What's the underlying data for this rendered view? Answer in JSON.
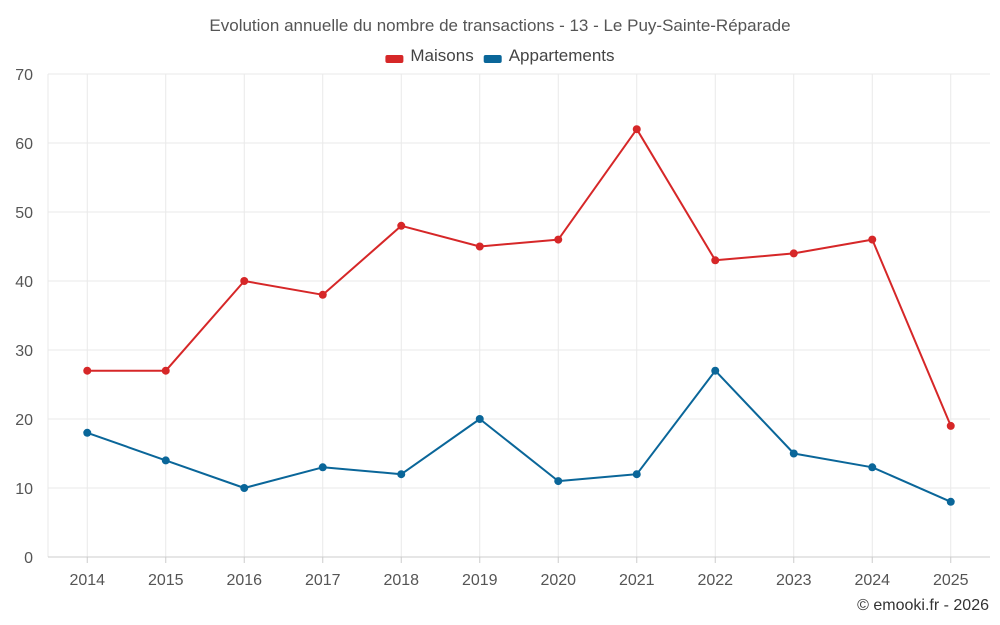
{
  "chart_data": {
    "type": "line",
    "title": "Evolution annuelle du nombre de transactions - 13 - Le Puy-Sainte-Réparade",
    "categories": [
      "2014",
      "2015",
      "2016",
      "2017",
      "2018",
      "2019",
      "2020",
      "2021",
      "2022",
      "2023",
      "2024",
      "2025"
    ],
    "series": [
      {
        "name": "Maisons",
        "color": "#d62728",
        "values": [
          27,
          27,
          40,
          38,
          48,
          45,
          46,
          62,
          43,
          44,
          46,
          19
        ]
      },
      {
        "name": "Appartements",
        "color": "#0a6699",
        "values": [
          18,
          14,
          10,
          13,
          12,
          20,
          11,
          12,
          27,
          15,
          13,
          8
        ]
      }
    ],
    "ylim": [
      0,
      70
    ],
    "yticks": [
      "0",
      "10",
      "20",
      "30",
      "40",
      "50",
      "60",
      "70"
    ],
    "grid": true,
    "legend": "top-center",
    "xlabel": "",
    "ylabel": ""
  },
  "credit": "© emooki.fr - 2026"
}
